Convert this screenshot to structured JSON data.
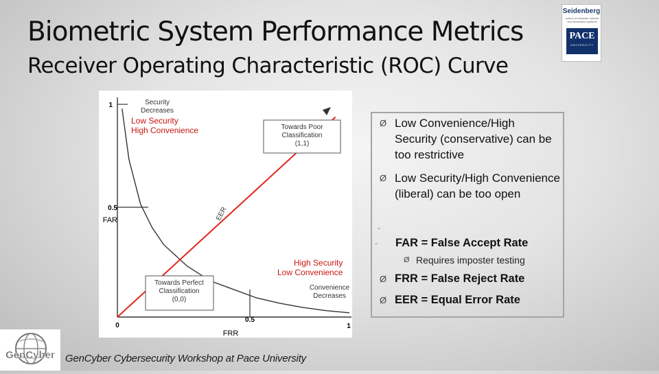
{
  "slide": {
    "title": "Biometric System Performance Metrics",
    "subtitle": "Receiver Operating Characteristic (ROC) Curve"
  },
  "logo": {
    "brand": "Seidenberg",
    "brand_sub": "school of computer science and information systems",
    "pace": "PACE",
    "pace_sub": "UNIVERSITY"
  },
  "chart_data": {
    "type": "line",
    "xlabel": "FRR",
    "ylabel": "FAR",
    "xlim": [
      0,
      1
    ],
    "ylim": [
      0,
      1
    ],
    "grid": false,
    "series": [
      {
        "x": [
          0.02,
          0.05,
          0.1,
          0.15,
          0.2,
          0.3,
          0.4,
          0.5,
          0.6,
          0.7,
          0.8,
          0.9,
          1.0
        ],
        "y": [
          0.98,
          0.74,
          0.53,
          0.42,
          0.34,
          0.24,
          0.17,
          0.13,
          0.09,
          0.065,
          0.045,
          0.03,
          0.02
        ],
        "color": "#333333"
      },
      {
        "x": [
          0,
          0.94
        ],
        "y": [
          0,
          0.94
        ],
        "color": "#e0261a"
      }
    ],
    "tick_labels": {
      "y_top": "1",
      "y_mid": "0.5",
      "origin": "0",
      "x_mid": "0.5",
      "x_right": "1"
    },
    "annotations": {
      "security_decreases": "Security\nDecreases",
      "poor_box": "Towards Poor\nClassification\n(1,1)",
      "perfect_box": "Towards Perfect\nClassification\n(0,0)",
      "eer": "EER",
      "convenience_decreases": "Convenience\nDecreases",
      "low_security": "Low Security\nHigh Convenience",
      "high_security": "High Security\nLow Convenience"
    },
    "colors": {
      "curve": "#333333",
      "diagonal": "#e0261a",
      "labels": "#c8170e"
    }
  },
  "bullets": {
    "item1": "Low Convenience/High Security (conservative) can be too restrictive",
    "item2": "Low Security/High Convenience (liberal) can be too open",
    "far": "FAR = False Accept Rate",
    "far_sub": "Requires imposter testing",
    "frr": "FRR = False Reject Rate",
    "eer": "EER = Equal Error Rate",
    "marker": "Ø"
  },
  "footer": {
    "text": "GenCyber Cybersecurity Workshop at Pace University",
    "logo_text": "GenCyber"
  }
}
